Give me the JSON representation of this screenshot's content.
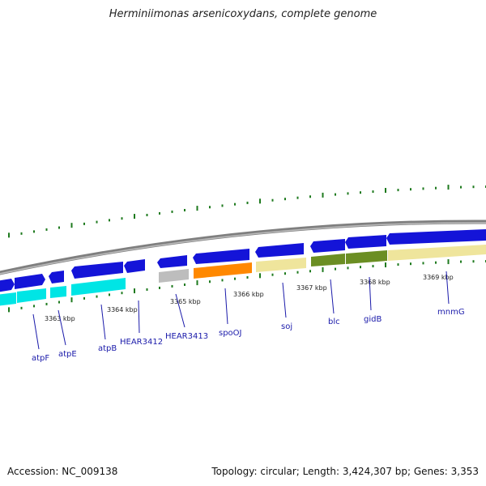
{
  "title": "Herminiimonas arsenicoxydans, complete genome",
  "footer": {
    "accession": "Accession: NC_009138",
    "summary": "Topology: circular; Length: 3,424,307 bp; Genes: 3,353"
  },
  "colors": {
    "backbone": "#8a8a8a",
    "gene_fwd": "#1414d8",
    "dots": "#1e7a1e",
    "label_line": "#1a1aaa"
  },
  "kbp_ticks": [
    "3363 kbp",
    "3364 kbp",
    "3365 kbp",
    "3366 kbp",
    "3367 kbp",
    "3368 kbp",
    "3369 kbp"
  ],
  "gene_labels": [
    "atpF",
    "atpE",
    "atpB",
    "HEAR3412",
    "HEAR3413",
    "spoOJ",
    "soj",
    "blc",
    "gidB",
    "mnmG"
  ]
}
